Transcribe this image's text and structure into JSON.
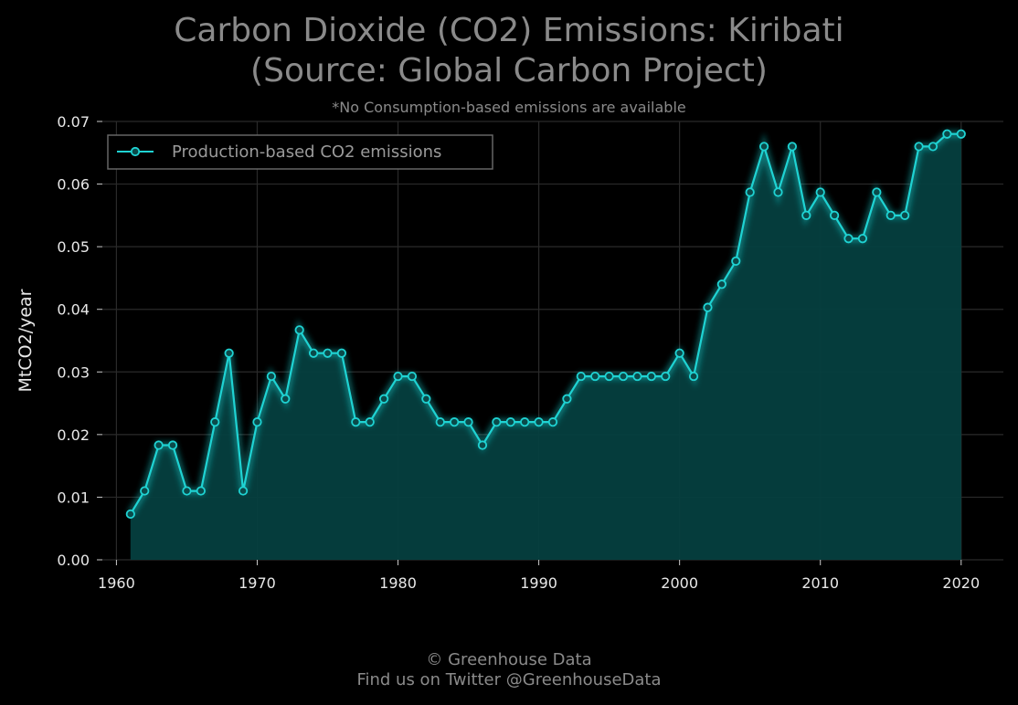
{
  "title_line1": "Carbon Dioxide (CO2) Emissions: Kiribati",
  "title_line2": "(Source: Global Carbon Project)",
  "subtitle": "*No Consumption-based emissions are available",
  "footer_line1": "© Greenhouse Data",
  "footer_line2": "Find us on Twitter @GreenhouseData",
  "colors": {
    "background": "#000000",
    "line": "#1fd3d3",
    "fill": "#053f3f",
    "grid": "#2a2a2a"
  },
  "chart_data": {
    "type": "area",
    "ylabel": "MtCO2/year",
    "xlabel": "",
    "xlim": [
      1959,
      2023
    ],
    "ylim": [
      0,
      0.07
    ],
    "x_ticks": [
      1960,
      1970,
      1980,
      1990,
      2000,
      2010,
      2020
    ],
    "y_ticks": [
      "0.00",
      "0.01",
      "0.02",
      "0.03",
      "0.04",
      "0.05",
      "0.06",
      "0.07"
    ],
    "grid": true,
    "legend_position": "top-left",
    "series": [
      {
        "name": "Production-based CO2 emissions",
        "x": [
          1961,
          1962,
          1963,
          1964,
          1965,
          1966,
          1967,
          1968,
          1969,
          1970,
          1971,
          1972,
          1973,
          1974,
          1975,
          1976,
          1977,
          1978,
          1979,
          1980,
          1981,
          1982,
          1983,
          1984,
          1985,
          1986,
          1987,
          1988,
          1989,
          1990,
          1991,
          1992,
          1993,
          1994,
          1995,
          1996,
          1997,
          1998,
          1999,
          2000,
          2001,
          2002,
          2003,
          2004,
          2005,
          2006,
          2007,
          2008,
          2009,
          2010,
          2011,
          2012,
          2013,
          2014,
          2015,
          2016,
          2017,
          2018,
          2019,
          2020
        ],
        "values": [
          0.0073,
          0.011,
          0.0183,
          0.0183,
          0.011,
          0.011,
          0.022,
          0.033,
          0.011,
          0.022,
          0.0293,
          0.0257,
          0.0367,
          0.033,
          0.033,
          0.033,
          0.022,
          0.022,
          0.0257,
          0.0293,
          0.0293,
          0.0257,
          0.022,
          0.022,
          0.022,
          0.0183,
          0.022,
          0.022,
          0.022,
          0.022,
          0.022,
          0.0257,
          0.0293,
          0.0293,
          0.0293,
          0.0293,
          0.0293,
          0.0293,
          0.0293,
          0.033,
          0.0293,
          0.0403,
          0.044,
          0.0477,
          0.0587,
          0.066,
          0.0587,
          0.066,
          0.055,
          0.0587,
          0.055,
          0.0513,
          0.0513,
          0.0587,
          0.055,
          0.055,
          0.066,
          0.066,
          0.068,
          0.068
        ]
      }
    ]
  }
}
